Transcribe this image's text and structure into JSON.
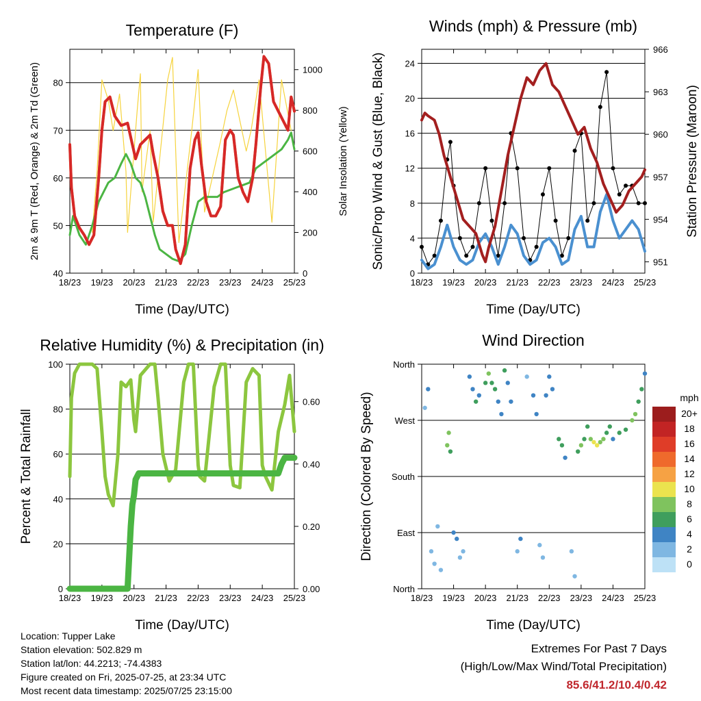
{
  "x_ticks": [
    "18/23",
    "19/23",
    "20/23",
    "21/23",
    "22/23",
    "23/23",
    "24/23",
    "25/23"
  ],
  "chart_data": [
    {
      "type": "line",
      "title": "Temperature (F)",
      "xlabel": "Time (Day/UTC)",
      "ylabel": "2m & 9m T (Red, Orange) & 2m Td (Green)",
      "y2label": "Solar Insolation (Yellow)",
      "xlim": [
        0,
        7
      ],
      "ylim": [
        40,
        87
      ],
      "y2lim": [
        0,
        1100
      ],
      "yticks": [
        40,
        50,
        60,
        70,
        80
      ],
      "y2ticks": [
        0,
        200,
        400,
        600,
        800,
        1000
      ],
      "grid": true,
      "series": [
        {
          "color": "#d62828",
          "x": [
            0,
            0.05,
            0.15,
            0.3,
            0.45,
            0.6,
            0.75,
            0.9,
            1.0,
            1.1,
            1.25,
            1.4,
            1.6,
            1.8,
            1.95,
            2.05,
            2.2,
            2.35,
            2.5,
            2.6,
            2.75,
            2.9,
            3.05,
            3.2,
            3.3,
            3.45,
            3.6,
            3.75,
            3.9,
            4.0,
            4.1,
            4.25,
            4.4,
            4.55,
            4.7,
            4.85,
            5.0,
            5.1,
            5.25,
            5.4,
            5.55,
            5.7,
            5.8,
            5.95,
            6.05,
            6.2,
            6.35,
            6.5,
            6.65,
            6.8,
            6.9,
            7.0
          ],
          "y": [
            67,
            58,
            52,
            49.5,
            48,
            46,
            48,
            60,
            70,
            76,
            77,
            73,
            71,
            71.5,
            67,
            64,
            67,
            68,
            69,
            65,
            60,
            53,
            50,
            50,
            45,
            42,
            46,
            62,
            68,
            69.5,
            63,
            55,
            52,
            52,
            54,
            68,
            70,
            69,
            60,
            57,
            55,
            60,
            67,
            79,
            85.5,
            84,
            76,
            74,
            72,
            70,
            77,
            74
          ]
        },
        {
          "color": "#f08a24",
          "x": [
            0,
            0.05,
            0.15,
            0.3,
            0.45,
            0.6,
            0.75,
            0.9,
            1.0,
            1.1,
            1.25,
            1.4,
            1.6,
            1.8,
            1.95,
            2.05,
            2.2,
            2.35,
            2.5,
            2.6,
            2.75,
            2.9,
            3.05,
            3.2,
            3.3,
            3.45,
            3.6,
            3.75,
            3.9,
            4.0,
            4.1,
            4.25,
            4.4,
            4.55,
            4.7,
            4.85,
            5.0,
            5.1,
            5.25,
            5.4,
            5.55,
            5.7,
            5.8,
            5.95,
            6.05,
            6.2,
            6.35,
            6.5,
            6.65,
            6.8,
            6.9,
            7.0
          ],
          "y": [
            67,
            58,
            52,
            49.5,
            48,
            46,
            48,
            60,
            70,
            76,
            77,
            73,
            71,
            71.5,
            67,
            64,
            67,
            68,
            69,
            65,
            60,
            53,
            50,
            50,
            45,
            42,
            46,
            62,
            68,
            69.5,
            63,
            55,
            52,
            52,
            54,
            68,
            70,
            69,
            60,
            57,
            55,
            60,
            67,
            79,
            85.5,
            84,
            76,
            74,
            72,
            70,
            77,
            74
          ]
        },
        {
          "color": "#4bb543",
          "x": [
            0,
            0.1,
            0.3,
            0.5,
            0.7,
            0.9,
            1.05,
            1.2,
            1.4,
            1.6,
            1.75,
            1.9,
            2.05,
            2.2,
            2.35,
            2.5,
            2.65,
            2.8,
            3.0,
            3.2,
            3.4,
            3.6,
            3.8,
            4.0,
            4.2,
            4.4,
            4.6,
            4.8,
            5.0,
            5.2,
            5.4,
            5.6,
            5.8,
            6.0,
            6.2,
            6.4,
            6.6,
            6.8,
            6.9,
            7.0
          ],
          "y": [
            48,
            52,
            48,
            46,
            50,
            55,
            57,
            59,
            60,
            63,
            65,
            63,
            60,
            59,
            56,
            52,
            48,
            45,
            44,
            43,
            42.5,
            44,
            50,
            55,
            56,
            56,
            56,
            57,
            57.5,
            58,
            58.5,
            59,
            62,
            63,
            64,
            65,
            66,
            68,
            69.5,
            66
          ]
        },
        {
          "color": "#f6d33c",
          "axis": "y2",
          "x": [
            0.7,
            0.85,
            1.0,
            1.2,
            1.35,
            1.55,
            1.75,
            1.8,
            2.1,
            2.2,
            2.25,
            2.5,
            2.6,
            3.05,
            3.2,
            3.4,
            3.8,
            4.0,
            4.2,
            4.7,
            4.9,
            5.1,
            5.5,
            5.65,
            5.9,
            6.3,
            6.6,
            6.9
          ],
          "y": [
            200,
            500,
            950,
            850,
            700,
            880,
            500,
            200,
            800,
            980,
            400,
            700,
            250,
            950,
            1060,
            150,
            700,
            1000,
            300,
            650,
            800,
            900,
            600,
            700,
            950,
            250,
            950,
            700
          ]
        }
      ]
    },
    {
      "type": "scatter",
      "title": "Winds (mph) & Pressure (mb)",
      "xlabel": "Time (Day/UTC)",
      "ylabel": "Sonic/Prop Wind & Gust (Blue, Black)",
      "y2label": "Station Pressure (Maroon)",
      "xlim": [
        0,
        7
      ],
      "ylim": [
        0,
        25.6
      ],
      "y2lim": [
        950.2,
        966
      ],
      "yticks": [
        0,
        4,
        8,
        12,
        16,
        20,
        24
      ],
      "y2ticks": [
        951,
        954,
        957,
        960,
        963,
        966
      ],
      "grid": true,
      "series": [
        {
          "color": "#000000",
          "x": [
            0,
            0.2,
            0.4,
            0.6,
            0.8,
            0.9,
            1.0,
            1.2,
            1.4,
            1.6,
            1.8,
            2.0,
            2.2,
            2.4,
            2.6,
            2.8,
            3.0,
            3.2,
            3.4,
            3.6,
            3.8,
            4.0,
            4.2,
            4.4,
            4.6,
            4.8,
            5.0,
            5.2,
            5.4,
            5.6,
            5.8,
            6.0,
            6.2,
            6.4,
            6.6,
            6.8,
            7.0
          ],
          "y": [
            3,
            1,
            2,
            6,
            13,
            15,
            10,
            4,
            2,
            3,
            8,
            12,
            6,
            2,
            8,
            16,
            12,
            4,
            1.5,
            3,
            9,
            12,
            6,
            2,
            4,
            14,
            16,
            6,
            8,
            19,
            23,
            12,
            9,
            10,
            10,
            8,
            8
          ]
        },
        {
          "color": "#4a90d0",
          "x": [
            0,
            0.2,
            0.4,
            0.6,
            0.8,
            1.0,
            1.2,
            1.4,
            1.6,
            1.8,
            2.0,
            2.2,
            2.4,
            2.6,
            2.8,
            3.0,
            3.2,
            3.4,
            3.6,
            3.8,
            4.0,
            4.2,
            4.4,
            4.6,
            4.8,
            5.0,
            5.2,
            5.4,
            5.6,
            5.8,
            6.0,
            6.2,
            6.4,
            6.6,
            6.8,
            7.0
          ],
          "y": [
            1.5,
            0.5,
            1,
            3,
            5.5,
            3,
            1.5,
            1,
            1.5,
            3.5,
            4.5,
            3,
            1,
            3,
            5.5,
            4.5,
            2,
            1,
            1.5,
            3.5,
            4,
            3,
            1,
            1.5,
            5,
            6.5,
            3,
            3,
            7,
            9,
            6,
            4,
            5,
            6,
            5,
            2.5
          ]
        },
        {
          "color": "#a31f1f",
          "axis": "y2",
          "x": [
            0,
            0.1,
            0.2,
            0.4,
            0.55,
            0.7,
            0.9,
            1.1,
            1.3,
            1.5,
            1.7,
            1.9,
            2.0,
            2.1,
            2.3,
            2.5,
            2.7,
            2.9,
            3.1,
            3.3,
            3.5,
            3.7,
            3.9,
            4.1,
            4.3,
            4.5,
            4.7,
            4.9,
            5.1,
            5.3,
            5.5,
            5.7,
            5.9,
            6.1,
            6.3,
            6.5,
            6.7,
            6.9,
            7.0
          ],
          "y": [
            961,
            961.5,
            961.3,
            961,
            960,
            958.5,
            957,
            955.5,
            954,
            953.5,
            953,
            951.5,
            951,
            952,
            953.5,
            956,
            958.5,
            960.5,
            962.5,
            964,
            963.5,
            964.5,
            965,
            963.5,
            963,
            962,
            961,
            960,
            960.5,
            959,
            958,
            956.5,
            955.5,
            954.5,
            955,
            956,
            956.5,
            957,
            957.5
          ]
        }
      ]
    },
    {
      "type": "line",
      "title": "Relative Humidity (%) & Precipitation (in)",
      "xlabel": "Time (Day/UTC)",
      "ylabel": "Percent & Total Rainfall",
      "xlim": [
        0,
        7
      ],
      "ylim": [
        0,
        100
      ],
      "y2lim": [
        0,
        0.72
      ],
      "yticks": [
        0,
        20,
        40,
        60,
        80,
        100
      ],
      "y2ticks": [
        0.0,
        0.2,
        0.4,
        0.6
      ],
      "y2ticklabels": [
        "0.00",
        "0.20",
        "0.40",
        "0.60"
      ],
      "grid": true,
      "series": [
        {
          "color": "#8cc63f",
          "x": [
            0,
            0.05,
            0.15,
            0.3,
            0.5,
            0.7,
            0.85,
            1.0,
            1.1,
            1.2,
            1.35,
            1.5,
            1.6,
            1.75,
            1.9,
            2.0,
            2.05,
            2.2,
            2.5,
            2.65,
            2.75,
            2.9,
            3.1,
            3.3,
            3.55,
            3.7,
            3.85,
            4.0,
            4.05,
            4.2,
            4.5,
            4.7,
            4.85,
            5.0,
            5.1,
            5.3,
            5.5,
            5.7,
            5.9,
            6.0,
            6.1,
            6.3,
            6.5,
            6.7,
            6.85,
            7.0
          ],
          "y": [
            50,
            85,
            96,
            100,
            100,
            100,
            98,
            70,
            50,
            42,
            37,
            60,
            92,
            90,
            93,
            75,
            70,
            95,
            100,
            100,
            85,
            60,
            48,
            53,
            92,
            100,
            100,
            55,
            50,
            48,
            90,
            100,
            100,
            55,
            46,
            45,
            92,
            98,
            95,
            55,
            50,
            44,
            70,
            82,
            95,
            70
          ]
        },
        {
          "color": "#4bb543",
          "axis": "y2",
          "x": [
            0,
            1.8,
            1.85,
            1.9,
            1.95,
            2.0,
            2.05,
            2.15,
            2.2,
            2.3,
            3.0,
            4.0,
            5.0,
            6.0,
            6.5,
            6.6,
            6.7,
            7.0
          ],
          "y": [
            0,
            0,
            0.1,
            0.2,
            0.27,
            0.3,
            0.35,
            0.37,
            0.37,
            0.37,
            0.37,
            0.37,
            0.37,
            0.37,
            0.37,
            0.4,
            0.42,
            0.42
          ]
        }
      ]
    },
    {
      "type": "scatter",
      "title": "Wind Direction",
      "xlabel": "Time (Day/UTC)",
      "ylabel": "Direction (Colored By Speed)",
      "xlim": [
        0,
        7
      ],
      "ylim": [
        0,
        360
      ],
      "yticks": [
        0,
        90,
        180,
        270,
        360
      ],
      "yticklabels": [
        "North",
        "East",
        "South",
        "West",
        "North"
      ],
      "grid": true,
      "colorbar": {
        "title": "mph",
        "labels": [
          "20+",
          "18",
          "16",
          "14",
          "12",
          "10",
          "8",
          "6",
          "4",
          "2",
          "0"
        ],
        "colors": [
          "#9c1d1d",
          "#c22424",
          "#df3d28",
          "#ef6a2c",
          "#f6a244",
          "#ebe34e",
          "#7fc35e",
          "#3f9e5d",
          "#3f84c4",
          "#7fb7e2",
          "#bde1f6"
        ]
      },
      "x": [
        0.1,
        0.2,
        0.3,
        0.4,
        0.5,
        0.6,
        0.8,
        0.85,
        0.9,
        1.0,
        1.1,
        1.2,
        1.3,
        1.5,
        1.6,
        1.7,
        1.8,
        2.0,
        2.1,
        2.2,
        2.3,
        2.4,
        2.5,
        2.6,
        2.7,
        2.8,
        3.0,
        3.1,
        3.3,
        3.5,
        3.6,
        3.7,
        3.8,
        3.9,
        4.0,
        4.1,
        4.3,
        4.4,
        4.5,
        4.7,
        4.8,
        4.9,
        5.0,
        5.1,
        5.2,
        5.3,
        5.4,
        5.5,
        5.6,
        5.7,
        5.8,
        5.9,
        6.0,
        6.2,
        6.4,
        6.6,
        6.7,
        6.8,
        6.9,
        7.0
      ],
      "y": [
        290,
        320,
        60,
        40,
        100,
        30,
        230,
        250,
        220,
        90,
        80,
        50,
        60,
        340,
        320,
        300,
        310,
        330,
        345,
        330,
        320,
        300,
        280,
        350,
        330,
        300,
        60,
        80,
        340,
        310,
        280,
        70,
        50,
        310,
        340,
        320,
        240,
        230,
        210,
        60,
        20,
        220,
        230,
        240,
        260,
        240,
        235,
        230,
        235,
        240,
        250,
        260,
        240,
        250,
        255,
        270,
        280,
        300,
        320,
        345
      ],
      "speed": [
        2,
        3,
        1,
        2,
        1,
        2,
        7,
        8,
        6,
        3,
        3,
        2,
        2,
        3,
        4,
        5,
        4,
        5,
        7,
        6,
        5,
        4,
        3,
        5,
        4,
        4,
        2,
        3,
        2,
        3,
        4,
        2,
        2,
        3,
        4,
        4,
        6,
        5,
        4,
        2,
        1,
        6,
        7,
        6,
        5,
        7,
        9,
        10,
        8,
        7,
        6,
        5,
        4,
        5,
        6,
        7,
        7,
        6,
        5,
        4
      ]
    }
  ],
  "info": {
    "location": "Location: Tupper Lake",
    "elevation": "Station elevation: 502.829 m",
    "latlon": "Station lat/lon: 44.2213; -74.4383",
    "created": "Figure created on Fri, 2025-07-25, at 23:34 UTC",
    "recent": "Most recent data timestamp: 2025/07/25 23:15:00"
  },
  "extremes": {
    "title": "Extremes For Past 7 Days",
    "subtitle": "(High/Low/Max Wind/Total Precipitation)",
    "values": "85.6/41.2/10.4/0.42"
  }
}
